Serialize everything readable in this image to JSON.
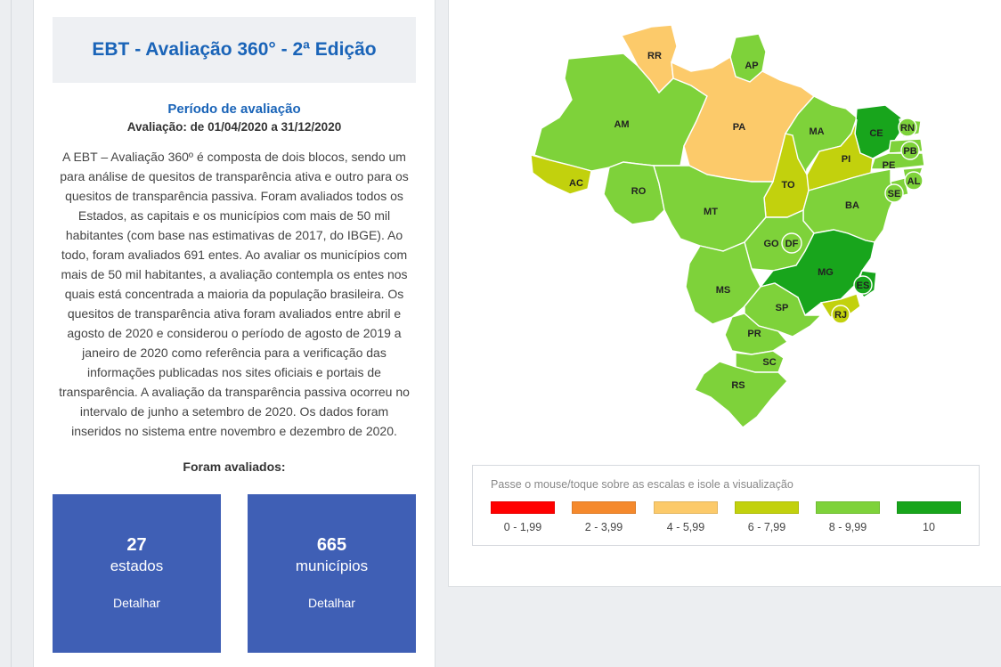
{
  "summary": {
    "title": "EBT - Avaliação 360° - 2ª Edição",
    "period_title": "Período de avaliação",
    "period_dates": "Avaliação: de 01/04/2020 a 31/12/2020",
    "description": "A EBT – Avaliação 360º é composta de dois blocos, sendo um para análise de quesitos de transparência ativa e outro para os quesitos de transparência passiva. Foram avaliados todos os Estados, as capitais e os municípios com mais de 50 mil habitantes (com base nas estimativas de 2017, do IBGE). Ao todo, foram avaliados 691 entes. Ao avaliar os municípios com mais de 50 mil habitantes, a avaliação contempla os entes nos quais está concentrada a maioria da população brasileira. Os quesitos de transparência ativa foram avaliados entre abril e agosto de 2020 e considerou o período de agosto de 2019 a janeiro de 2020 como referência para a verificação das informações publicadas nos sites oficiais e portais de transparência. A avaliação da transparência passiva ocorreu no intervalo de junho a setembro de 2020.  Os dados foram inseridos no sistema entre novembro e dezembro de 2020.",
    "evaluated_title": "Foram avaliados:"
  },
  "cards": [
    {
      "number": "27",
      "label": "estados",
      "action": "Detalhar",
      "color": "#3f5fb5"
    },
    {
      "number": "665",
      "label": "municípios",
      "action": "Detalhar",
      "color": "#3f5fb5"
    }
  ],
  "legend": {
    "hint": "Passe o mouse/toque sobre as escalas e isole a visualização",
    "items": [
      {
        "label": "0 - 1,99",
        "color": "#ff0000"
      },
      {
        "label": "2 - 3,99",
        "color": "#f5892c"
      },
      {
        "label": "4 - 5,99",
        "color": "#fcca6a"
      },
      {
        "label": "6 - 7,99",
        "color": "#c2d10d"
      },
      {
        "label": "8 - 9,99",
        "color": "#7ed23a"
      },
      {
        "label": "10",
        "color": "#18a51c"
      }
    ]
  },
  "map": {
    "states": [
      {
        "uf": "RR",
        "band": 2
      },
      {
        "uf": "AP",
        "band": 4
      },
      {
        "uf": "AM",
        "band": 4
      },
      {
        "uf": "PA",
        "band": 2
      },
      {
        "uf": "MA",
        "band": 4
      },
      {
        "uf": "CE",
        "band": 5
      },
      {
        "uf": "RN",
        "band": 4
      },
      {
        "uf": "PB",
        "band": 4
      },
      {
        "uf": "PE",
        "band": 4
      },
      {
        "uf": "AL",
        "band": 4
      },
      {
        "uf": "SE",
        "band": 4
      },
      {
        "uf": "PI",
        "band": 3
      },
      {
        "uf": "TO",
        "band": 3
      },
      {
        "uf": "AC",
        "band": 3
      },
      {
        "uf": "RO",
        "band": 4
      },
      {
        "uf": "MT",
        "band": 4
      },
      {
        "uf": "BA",
        "band": 4
      },
      {
        "uf": "GO",
        "band": 4
      },
      {
        "uf": "DF",
        "band": 4
      },
      {
        "uf": "MG",
        "band": 5
      },
      {
        "uf": "ES",
        "band": 5
      },
      {
        "uf": "RJ",
        "band": 3
      },
      {
        "uf": "MS",
        "band": 4
      },
      {
        "uf": "SP",
        "band": 4
      },
      {
        "uf": "PR",
        "band": 4
      },
      {
        "uf": "SC",
        "band": 4
      },
      {
        "uf": "RS",
        "band": 4
      }
    ]
  }
}
